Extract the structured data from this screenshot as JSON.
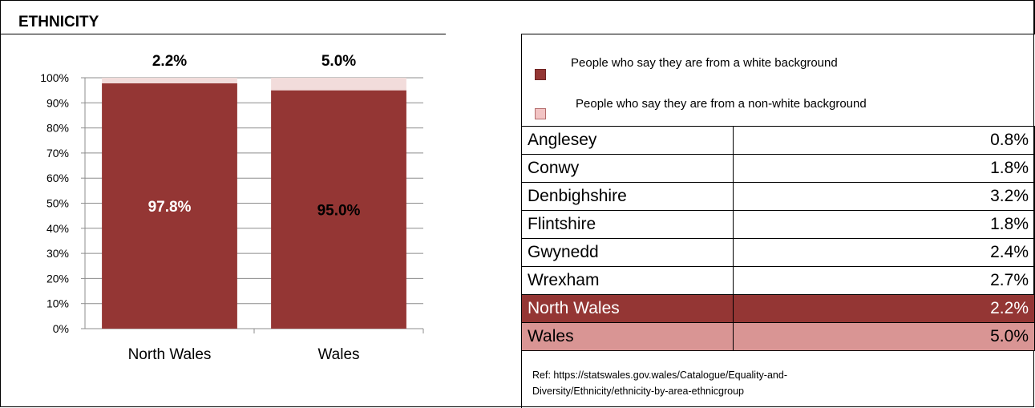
{
  "section": {
    "title": "ETHNICITY"
  },
  "colors": {
    "white_bg": "#943634",
    "non_white_bg": "#f2dcdb",
    "north_wales_row": "#943634",
    "wales_row": "#d99594"
  },
  "chart_data": {
    "type": "bar",
    "stacked": true,
    "categories": [
      "North Wales",
      "Wales"
    ],
    "series": [
      {
        "name": "People who say they are from a white background",
        "values": [
          97.8,
          95.0
        ],
        "labels": [
          "97.8%",
          "95.0%"
        ]
      },
      {
        "name": "People who say they are from a non-white background",
        "values": [
          2.2,
          5.0
        ],
        "labels": [
          "2.2%",
          "5.0%"
        ]
      }
    ],
    "yticks": [
      "0%",
      "10%",
      "20%",
      "30%",
      "40%",
      "50%",
      "60%",
      "70%",
      "80%",
      "90%",
      "100%"
    ],
    "ylim": [
      0,
      100
    ],
    "grid": true,
    "legend": "right"
  },
  "legend": {
    "white": "People who say they are from a white background",
    "non_white": "People who say they are from a non-white background"
  },
  "table": {
    "rows": [
      {
        "area": "Anglesey",
        "value": "0.8%"
      },
      {
        "area": "Conwy",
        "value": "1.8%"
      },
      {
        "area": "Denbighshire",
        "value": "3.2%"
      },
      {
        "area": "Flintshire",
        "value": "1.8%"
      },
      {
        "area": "Gwynedd",
        "value": "2.4%"
      },
      {
        "area": "Wrexham",
        "value": "2.7%"
      },
      {
        "area": "North Wales",
        "value": "2.2%"
      },
      {
        "area": "Wales",
        "value": "5.0%"
      }
    ]
  },
  "ref": {
    "line1": "Ref: https://statswales.gov.wales/Catalogue/Equality-and-",
    "line2": "Diversity/Ethnicity/ethnicity-by-area-ethnicgroup"
  }
}
